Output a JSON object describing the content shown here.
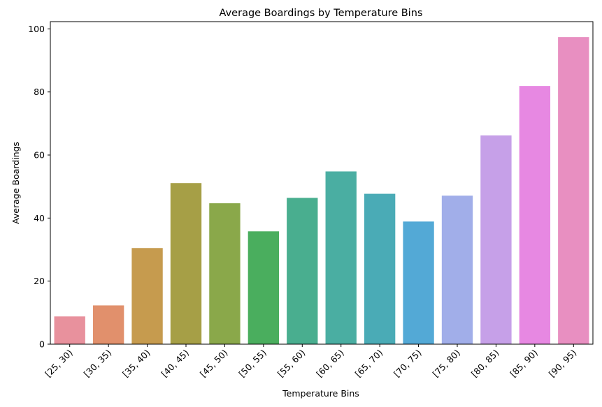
{
  "chart_data": {
    "type": "bar",
    "title": "Average Boardings by Temperature Bins",
    "xlabel": "Temperature Bins",
    "ylabel": "Average Boardings",
    "categories": [
      "[25, 30)",
      "[30, 35)",
      "[35, 40)",
      "[40, 45)",
      "[45, 50)",
      "[50, 55)",
      "[55, 60)",
      "[60, 65)",
      "[65, 70)",
      "[70, 75)",
      "[75, 80)",
      "[80, 85)",
      "[85, 90)",
      "[90, 95)"
    ],
    "values": [
      8.8,
      12.3,
      30.5,
      51.1,
      44.7,
      35.8,
      46.4,
      54.8,
      47.7,
      38.9,
      47.1,
      66.2,
      81.9,
      97.4
    ],
    "colors": [
      "#e8919d",
      "#e1906c",
      "#c69b4e",
      "#a69f46",
      "#8aa84a",
      "#4aae5e",
      "#49ae8f",
      "#4aaea2",
      "#4aabb6",
      "#53a9d6",
      "#a1aee9",
      "#c6a0e8",
      "#e788e2",
      "#e88fc1"
    ],
    "yticks": [
      "0",
      "20",
      "40",
      "60",
      "80",
      "100"
    ],
    "ylim": [
      0,
      102.3
    ],
    "grid": false,
    "legend": "none"
  }
}
